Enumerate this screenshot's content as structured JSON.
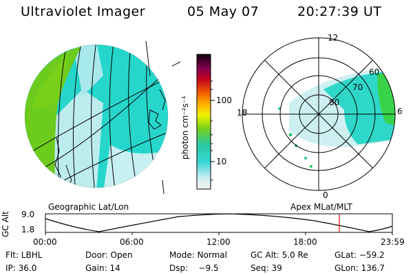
{
  "header": {
    "title": "Ultraviolet Imager",
    "date": "05 May 07",
    "time": "20:27:39 UT"
  },
  "colorbar": {
    "unit_label": "photon cm⁻²s⁻¹",
    "tick_100": "100",
    "tick_10": "10"
  },
  "geo_panel": {
    "label": "Geographic Lat/Lon"
  },
  "polar_panel": {
    "label": "Apex MLat/MLT",
    "mlt_12": "12",
    "mlt_18": "18",
    "mlt_6": "6",
    "mlt_0": "0",
    "lat_60": "60",
    "lat_70": "70",
    "lat_80": "80"
  },
  "altitude_plot": {
    "axis_label": "GC Alt",
    "y_top": "9.0",
    "y_bottom": "1.8",
    "x_ticks": [
      "00:00",
      "06:00",
      "12:00",
      "18:00",
      "23:59"
    ],
    "current_time_marker": "20:27:39"
  },
  "footer": {
    "flt": "Flt: LBHL",
    "door": "Door: Open",
    "mode": "Mode: Normal",
    "gc_alt": "GC Alt: 5.0 Re",
    "glat": "GLat: −59.2",
    "ip": "IP: 36.0",
    "gain": "Gain: 14",
    "dsp": "Dsp:    −9.5",
    "seq": "Seq: 39",
    "glon": "GLon: 136.7"
  },
  "colors": {
    "green": "#66cc1a",
    "cyan": "#22d8c8",
    "light_cyan": "#bfeff0",
    "marker_red": "#dd0000"
  }
}
